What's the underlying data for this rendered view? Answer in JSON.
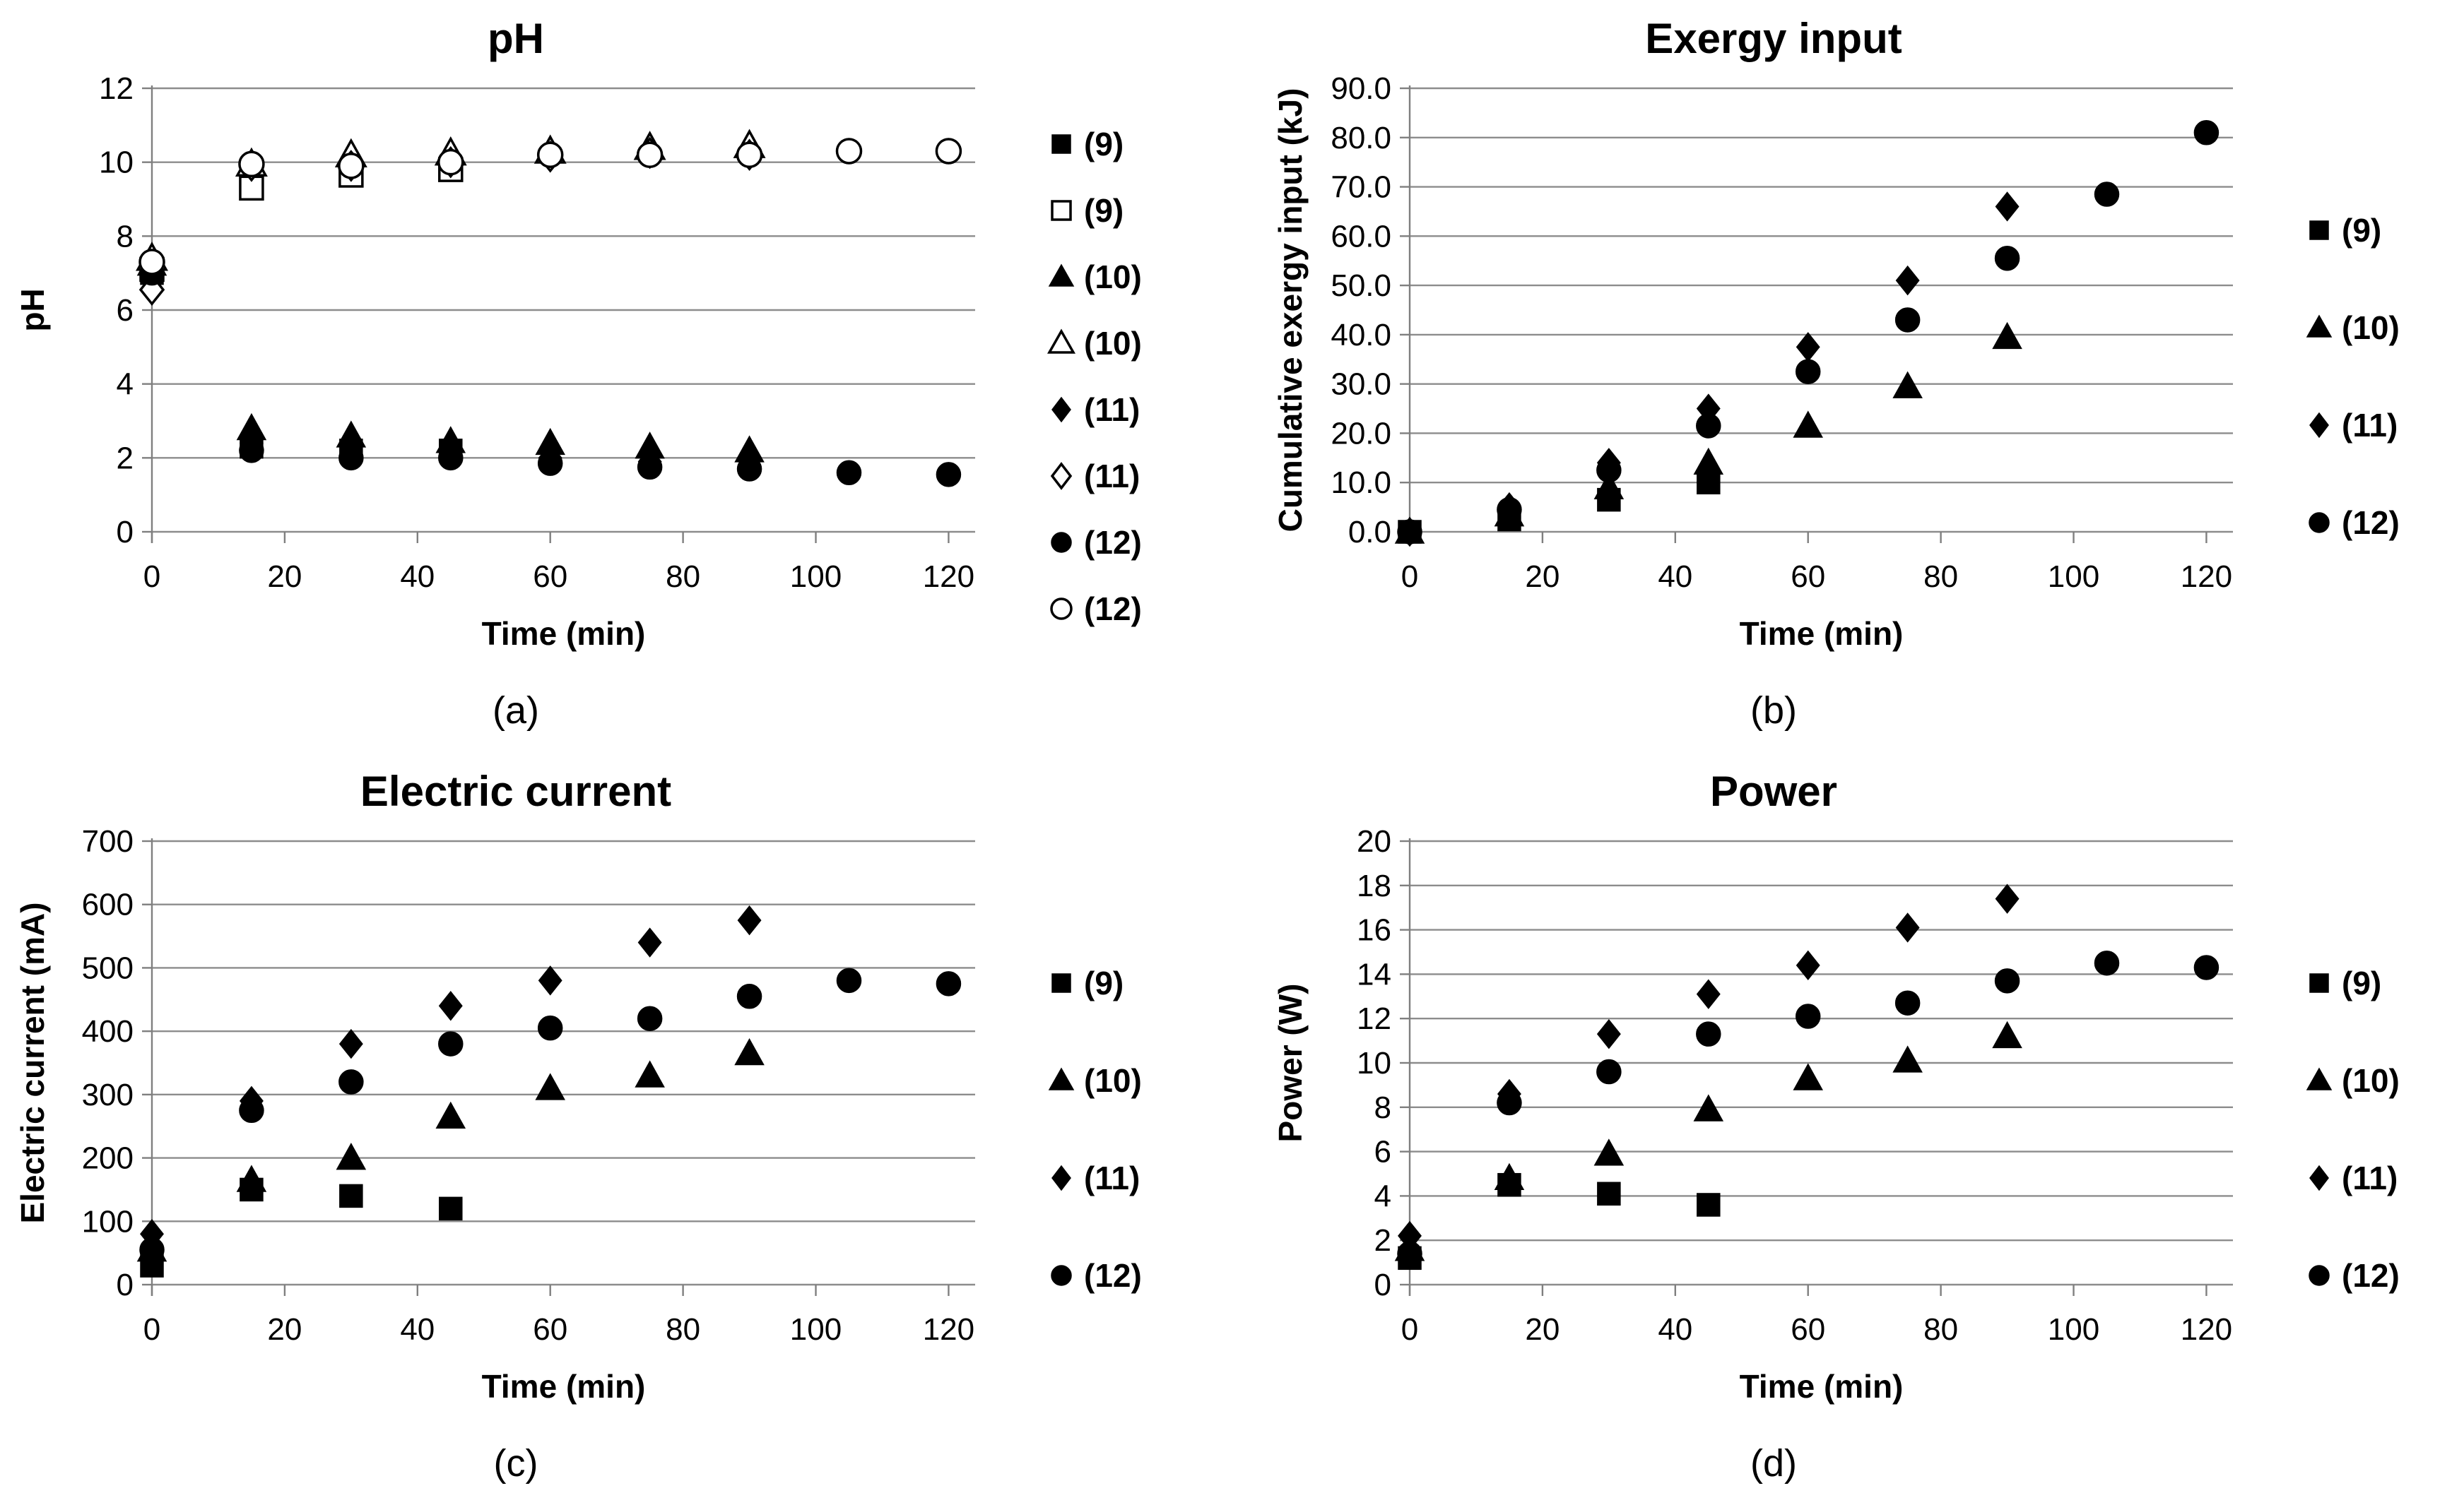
{
  "colors": {
    "marker": "#000000",
    "grid": "#8c8c8c",
    "axis": "#7f7f7f",
    "text": "#000000",
    "open_fill": "#ffffff"
  },
  "layout": {
    "legend_gap_small": 40,
    "legend_gap_large": 84
  },
  "chart_data": [
    {
      "id": "a",
      "type": "scatter",
      "title": "pH",
      "xlabel": "Time (min)",
      "ylabel": "pH",
      "caption": "(a)",
      "xlim": [
        0,
        124
      ],
      "ylim": [
        0,
        12
      ],
      "xticks": [
        0,
        20,
        40,
        60,
        80,
        100,
        120
      ],
      "yticks": [
        0,
        2,
        4,
        6,
        8,
        10,
        12
      ],
      "ytick_decimals": 0,
      "grid": true,
      "legend_position": "right",
      "series": [
        {
          "label": "(9)",
          "marker": "square",
          "fill": "filled",
          "x": [
            0,
            15,
            30,
            45
          ],
          "y": [
            7.0,
            2.3,
            2.2,
            2.2
          ]
        },
        {
          "label": "(9)",
          "marker": "square",
          "fill": "open",
          "x": [
            0,
            15,
            30,
            45
          ],
          "y": [
            7.1,
            9.3,
            9.65,
            9.8
          ]
        },
        {
          "label": "(10)",
          "marker": "triangle",
          "fill": "filled",
          "x": [
            0,
            15,
            30,
            45,
            60,
            75,
            90
          ],
          "y": [
            7.25,
            2.8,
            2.6,
            2.45,
            2.4,
            2.3,
            2.2
          ]
        },
        {
          "label": "(10)",
          "marker": "triangle",
          "fill": "open",
          "x": [
            0,
            15,
            30,
            45,
            60,
            75,
            90
          ],
          "y": [
            7.4,
            9.95,
            10.2,
            10.25,
            10.3,
            10.4,
            10.45
          ]
        },
        {
          "label": "(11)",
          "marker": "diamond",
          "fill": "filled",
          "x": [
            0,
            15,
            30,
            45,
            60,
            75,
            90
          ],
          "y": [
            6.9,
            2.4,
            2.1,
            2.1,
            2.0,
            1.9,
            1.8
          ]
        },
        {
          "label": "(11)",
          "marker": "diamond",
          "fill": "open",
          "x": [
            0,
            15,
            30,
            45,
            60,
            75,
            90
          ],
          "y": [
            6.55,
            9.9,
            9.9,
            10.0,
            10.15,
            10.25,
            10.2
          ]
        },
        {
          "label": "(12)",
          "marker": "circle",
          "fill": "filled",
          "x": [
            0,
            15,
            30,
            45,
            60,
            75,
            90,
            105,
            120
          ],
          "y": [
            7.0,
            2.2,
            2.0,
            2.0,
            1.85,
            1.75,
            1.7,
            1.6,
            1.55
          ]
        },
        {
          "label": "(12)",
          "marker": "circle",
          "fill": "open",
          "x": [
            0,
            15,
            30,
            45,
            60,
            75,
            90,
            105,
            120
          ],
          "y": [
            7.3,
            9.95,
            9.9,
            10.0,
            10.2,
            10.2,
            10.2,
            10.3,
            10.3
          ]
        }
      ]
    },
    {
      "id": "b",
      "type": "scatter",
      "title": "Exergy input",
      "xlabel": "Time (min)",
      "ylabel": "Cumulative exergy input (kJ)",
      "caption": "(b)",
      "xlim": [
        0,
        124
      ],
      "ylim": [
        0,
        90
      ],
      "xticks": [
        0,
        20,
        40,
        60,
        80,
        100,
        120
      ],
      "yticks": [
        0,
        10,
        20,
        30,
        40,
        50,
        60,
        70,
        80,
        90
      ],
      "ytick_decimals": 1,
      "grid": true,
      "legend_position": "right",
      "series": [
        {
          "label": "(9)",
          "marker": "square",
          "fill": "filled",
          "x": [
            0,
            15,
            30,
            45
          ],
          "y": [
            0.0,
            2.5,
            6.5,
            10.0
          ]
        },
        {
          "label": "(10)",
          "marker": "triangle",
          "fill": "filled",
          "x": [
            0,
            15,
            30,
            45,
            60,
            75,
            90
          ],
          "y": [
            0.0,
            3.5,
            9.0,
            14.0,
            21.5,
            29.5,
            39.5
          ]
        },
        {
          "label": "(11)",
          "marker": "diamond",
          "fill": "filled",
          "x": [
            0,
            15,
            30,
            45,
            60,
            75,
            90
          ],
          "y": [
            0.0,
            5.0,
            14.0,
            25.0,
            37.5,
            51.0,
            66.0
          ]
        },
        {
          "label": "(12)",
          "marker": "circle",
          "fill": "filled",
          "x": [
            0,
            15,
            30,
            45,
            60,
            75,
            90,
            105,
            120
          ],
          "y": [
            0.0,
            4.5,
            12.5,
            21.5,
            32.5,
            43.0,
            55.5,
            68.5,
            81.0
          ]
        }
      ]
    },
    {
      "id": "c",
      "type": "scatter",
      "title": "Electric current",
      "xlabel": "Time (min)",
      "ylabel": "Electric current (mA)",
      "caption": "(c)",
      "xlim": [
        0,
        124
      ],
      "ylim": [
        0,
        700
      ],
      "xticks": [
        0,
        20,
        40,
        60,
        80,
        100,
        120
      ],
      "yticks": [
        0,
        100,
        200,
        300,
        400,
        500,
        600,
        700
      ],
      "ytick_decimals": 0,
      "grid": true,
      "legend_position": "right",
      "series": [
        {
          "label": "(9)",
          "marker": "square",
          "fill": "filled",
          "x": [
            0,
            15,
            30,
            45
          ],
          "y": [
            30,
            150,
            140,
            120
          ]
        },
        {
          "label": "(10)",
          "marker": "triangle",
          "fill": "filled",
          "x": [
            0,
            15,
            30,
            45,
            60,
            75,
            90
          ],
          "y": [
            55,
            165,
            200,
            265,
            310,
            330,
            365
          ]
        },
        {
          "label": "(11)",
          "marker": "diamond",
          "fill": "filled",
          "x": [
            0,
            15,
            30,
            45,
            60,
            75,
            90
          ],
          "y": [
            80,
            290,
            380,
            440,
            480,
            540,
            575
          ]
        },
        {
          "label": "(12)",
          "marker": "circle",
          "fill": "filled",
          "x": [
            0,
            15,
            30,
            45,
            60,
            75,
            90,
            105,
            120
          ],
          "y": [
            55,
            275,
            320,
            380,
            405,
            420,
            455,
            480,
            475
          ]
        }
      ]
    },
    {
      "id": "d",
      "type": "scatter",
      "title": "Power",
      "xlabel": "Time (min)",
      "ylabel": "Power (W)",
      "caption": "(d)",
      "xlim": [
        0,
        124
      ],
      "ylim": [
        0,
        20
      ],
      "xticks": [
        0,
        20,
        40,
        60,
        80,
        100,
        120
      ],
      "yticks": [
        0,
        2,
        4,
        6,
        8,
        10,
        12,
        14,
        16,
        18,
        20
      ],
      "ytick_decimals": 0,
      "grid": true,
      "legend_position": "right",
      "series": [
        {
          "label": "(9)",
          "marker": "square",
          "fill": "filled",
          "x": [
            0,
            15,
            30,
            45
          ],
          "y": [
            1.2,
            4.5,
            4.1,
            3.6
          ]
        },
        {
          "label": "(10)",
          "marker": "triangle",
          "fill": "filled",
          "x": [
            0,
            15,
            30,
            45,
            60,
            75,
            90
          ],
          "y": [
            1.6,
            4.8,
            5.9,
            7.9,
            9.3,
            10.1,
            11.2
          ]
        },
        {
          "label": "(11)",
          "marker": "diamond",
          "fill": "filled",
          "x": [
            0,
            15,
            30,
            45,
            60,
            75,
            90
          ],
          "y": [
            2.2,
            8.6,
            11.3,
            13.1,
            14.4,
            16.1,
            17.4
          ]
        },
        {
          "label": "(12)",
          "marker": "circle",
          "fill": "filled",
          "x": [
            0,
            15,
            30,
            45,
            60,
            75,
            90,
            105,
            120
          ],
          "y": [
            1.4,
            8.2,
            9.6,
            11.3,
            12.1,
            12.7,
            13.7,
            14.5,
            14.3
          ]
        }
      ]
    }
  ]
}
